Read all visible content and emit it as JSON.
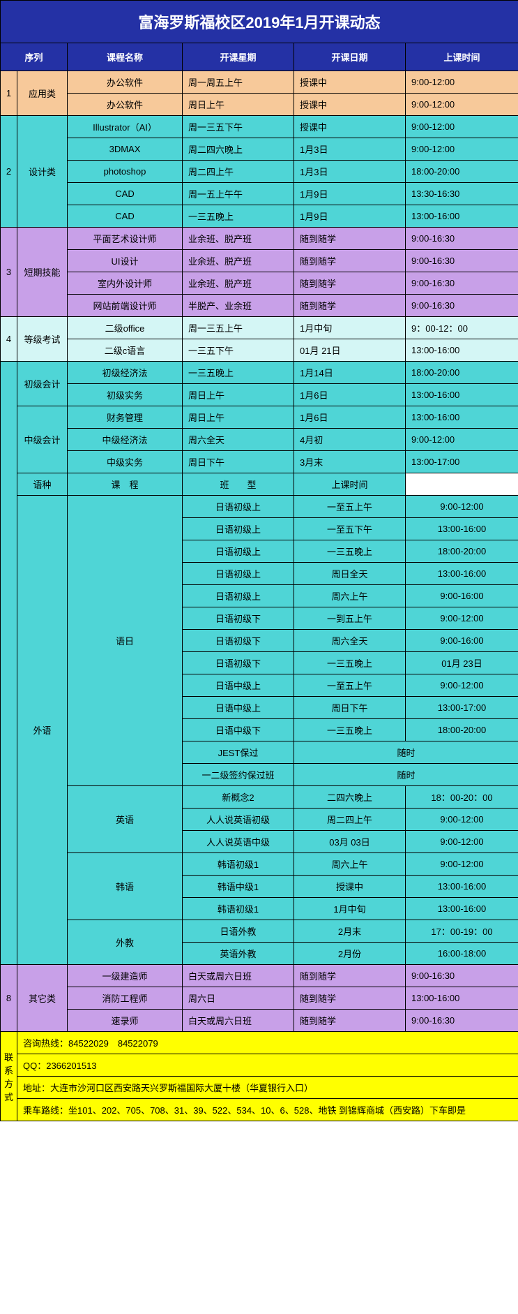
{
  "title": "富海罗斯福校区2019年1月开课动态",
  "head": {
    "seq": "序列",
    "name": "课程名称",
    "day": "开课星期",
    "date": "开课日期",
    "time": "上课时间"
  },
  "groups": [
    {
      "seq": "1",
      "cat": "应用类",
      "color": "c-orange",
      "rows": [
        {
          "name": "办公软件",
          "day": "周一周五上午",
          "date": "授课中",
          "time": "9:00-12:00"
        },
        {
          "name": "办公软件",
          "day": "周日上午",
          "date": "授课中",
          "time": "9:00-12:00"
        }
      ]
    },
    {
      "seq": "2",
      "cat": "设计类",
      "color": "c-cyan",
      "rows": [
        {
          "name": "Illustrator（AI）",
          "day": "周一三五下午",
          "date": "授课中",
          "time": "9:00-12:00"
        },
        {
          "name": "3DMAX",
          "day": "周二四六晚上",
          "date": "1月3日",
          "time": "9:00-12:00"
        },
        {
          "name": "photoshop",
          "day": "周二四上午",
          "date": "1月3日",
          "time": "18:00-20:00"
        },
        {
          "name": "CAD",
          "day": "周一五上午午",
          "date": "1月9日",
          "time": "13:30-16:30"
        },
        {
          "name": "CAD",
          "day": "一三五晚上",
          "date": "1月9日",
          "time": "13:00-16:00"
        }
      ]
    },
    {
      "seq": "3",
      "cat": "短期技能",
      "color": "c-purple",
      "rows": [
        {
          "name": "平面艺术设计师",
          "day": "业余班、脱产班",
          "date": "随到随学",
          "time": "9:00-16:30"
        },
        {
          "name": "UI设计",
          "day": "业余班、脱产班",
          "date": "随到随学",
          "time": "9:00-16:30"
        },
        {
          "name": "室内外设计师",
          "day": "业余班、脱产班",
          "date": "随到随学",
          "time": "9:00-16:30"
        },
        {
          "name": "网站前端设计师",
          "day": "半脱产、业余班",
          "date": "随到随学",
          "time": "9:00-16:30"
        }
      ]
    },
    {
      "seq": "4",
      "cat": "等级考试",
      "color": "c-lcyan",
      "rows": [
        {
          "name": "二级office",
          "day": "周一三五上午",
          "date": "1月中旬",
          "time": "9：00-12：00"
        },
        {
          "name": "二级c语言",
          "day": "一三五下午",
          "date": "01月 21日",
          "time": "13:00-16:00"
        }
      ]
    }
  ],
  "acct": {
    "junior": {
      "cat": "初级会计",
      "rows": [
        {
          "name": "初级经济法",
          "day": "一三五晚上",
          "date": "1月14日",
          "time": "18:00-20:00"
        },
        {
          "name": "初级实务",
          "day": "周日上午",
          "date": "1月6日",
          "time": "13:00-16:00"
        }
      ]
    },
    "inter": {
      "cat": "中级会计",
      "rows": [
        {
          "name": "财务管理",
          "day": "周日上午",
          "date": "1月6日",
          "time": "13:00-16:00"
        },
        {
          "name": "中级经济法",
          "day": "周六全天",
          "date": "4月初",
          "time": "9:00-12:00"
        },
        {
          "name": "中级实务",
          "day": "周日下午",
          "date": "3月末",
          "time": "13:00-17:00"
        }
      ]
    }
  },
  "langHead": {
    "c1": "语种",
    "c2": "课　程",
    "c3": "班　　型",
    "c4": "上课时间"
  },
  "langCat": "外语",
  "jp": {
    "cat": "语日",
    "rows": [
      {
        "name": "日语初级上",
        "date": "一至五上午",
        "time": "9:00-12:00"
      },
      {
        "name": "日语初级上",
        "date": "一至五下午",
        "time": "13:00-16:00"
      },
      {
        "name": "日语初级上",
        "date": "一三五晚上",
        "time": "18:00-20:00"
      },
      {
        "name": "日语初级上",
        "date": "周日全天",
        "time": "13:00-16:00"
      },
      {
        "name": "日语初级上",
        "date": "周六上午",
        "time": "9:00-16:00"
      },
      {
        "name": "日语初级下",
        "date": "一到五上午",
        "time": "9:00-12:00"
      },
      {
        "name": "日语初级下",
        "date": "周六全天",
        "time": "9:00-16:00"
      },
      {
        "name": "日语初级下",
        "date": "一三五晚上",
        "time": "01月 23日"
      },
      {
        "name": "日语中级上",
        "date": "一至五上午",
        "time": "9:00-12:00"
      },
      {
        "name": "日语中级上",
        "date": "周日下午",
        "time": "13:00-17:00"
      },
      {
        "name": "日语中级下",
        "date": "一三五晚上",
        "time": "18:00-20:00"
      }
    ],
    "tail": [
      {
        "name": "JEST保过",
        "merged": "随时"
      },
      {
        "name": "一二级签约保过班",
        "merged": "随时"
      }
    ]
  },
  "en": {
    "cat": "英语",
    "rows": [
      {
        "name": "新概念2",
        "date": "二四六晚上",
        "time": "18：00-20：00"
      },
      {
        "name": "人人说英语初级",
        "date": "周二四上午",
        "time": "9:00-12:00"
      },
      {
        "name": "人人说英语中级",
        "date": "03月 03日",
        "time": "9:00-12:00"
      }
    ]
  },
  "kr": {
    "cat": "韩语",
    "rows": [
      {
        "name": "韩语初级1",
        "date": "周六上午",
        "time": "9:00-12:00"
      },
      {
        "name": "韩语中级1",
        "date": "授课中",
        "time": "13:00-16:00"
      },
      {
        "name": "韩语初级1",
        "date": "1月中旬",
        "time": "13:00-16:00"
      }
    ]
  },
  "ft": {
    "cat": "外教",
    "rows": [
      {
        "name": "日语外教",
        "date": "2月末",
        "time": "17：00-19：00"
      },
      {
        "name": "英语外教",
        "date": "2月份",
        "time": "16:00-18:00"
      }
    ]
  },
  "other": {
    "seq": "8",
    "cat": "其它类",
    "rows": [
      {
        "name": "一级建造师",
        "day": "白天或周六日班",
        "date": "随到随学",
        "time": "9:00-16:30"
      },
      {
        "name": "消防工程师",
        "day": "周六日",
        "date": "随到随学",
        "time": "13:00-16:00"
      },
      {
        "name": "速录师",
        "day": "白天或周六日班",
        "date": "随到随学",
        "time": "9:00-16:30"
      }
    ]
  },
  "contact": {
    "cat": "联系方式",
    "lines": [
      "咨询热线：84522029　84522079",
      "QQ：2366201513",
      "地址：大连市沙河口区西安路天兴罗斯福国际大厦十楼（华夏银行入口）",
      "乘车路线：坐101、202、705、708、31、39、522、534、10、6、528、地铁 到锦辉商城（西安路）下车即是"
    ]
  }
}
